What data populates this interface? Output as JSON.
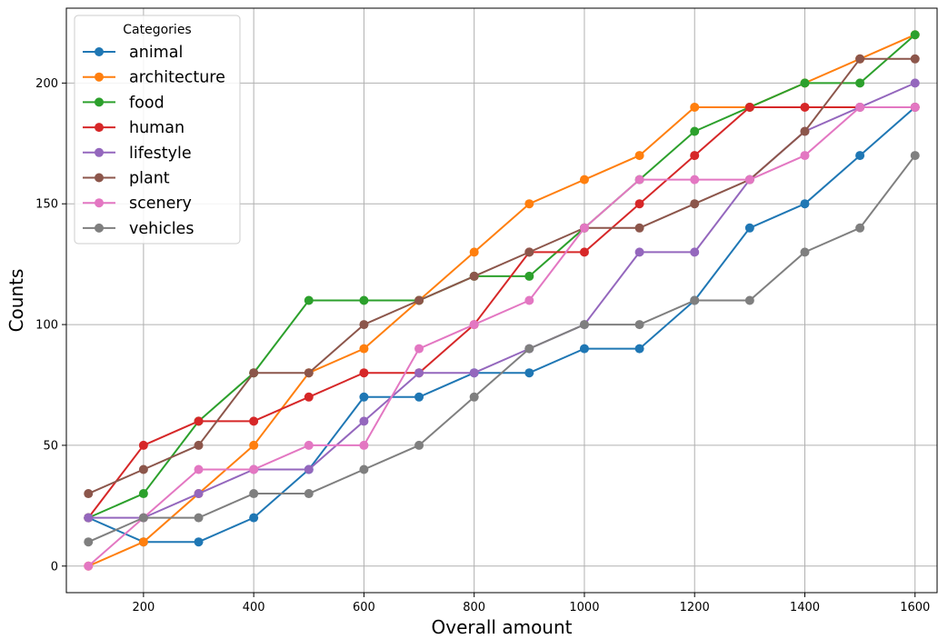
{
  "chart_data": {
    "type": "line",
    "xlabel": "Overall amount",
    "ylabel": "Counts",
    "x": [
      100,
      200,
      300,
      400,
      500,
      600,
      700,
      800,
      900,
      1000,
      1100,
      1200,
      1300,
      1400,
      1500,
      1600
    ],
    "xlim": [
      60,
      1640
    ],
    "ylim": [
      -11,
      231
    ],
    "xticks": [
      200,
      400,
      600,
      800,
      1000,
      1200,
      1400,
      1600
    ],
    "yticks": [
      0,
      50,
      100,
      150,
      200
    ],
    "grid": true,
    "legend": {
      "title": "Categories",
      "placement": "top-left"
    },
    "series": [
      {
        "name": "animal",
        "color": "#1f77b4",
        "values": [
          20,
          10,
          10,
          20,
          40,
          70,
          70,
          80,
          80,
          90,
          90,
          110,
          140,
          150,
          170,
          190
        ]
      },
      {
        "name": "architecture",
        "color": "#ff7f0e",
        "values": [
          0,
          10,
          30,
          50,
          80,
          90,
          110,
          130,
          150,
          160,
          170,
          190,
          190,
          200,
          210,
          220
        ]
      },
      {
        "name": "food",
        "color": "#2ca02c",
        "values": [
          20,
          30,
          60,
          80,
          110,
          110,
          110,
          120,
          120,
          140,
          160,
          180,
          190,
          200,
          200,
          220
        ]
      },
      {
        "name": "human",
        "color": "#d62728",
        "values": [
          20,
          50,
          60,
          60,
          70,
          80,
          80,
          100,
          130,
          130,
          150,
          170,
          190,
          190,
          190,
          190
        ]
      },
      {
        "name": "lifestyle",
        "color": "#9467bd",
        "values": [
          20,
          20,
          30,
          40,
          40,
          60,
          80,
          80,
          90,
          100,
          130,
          130,
          160,
          180,
          190,
          200
        ]
      },
      {
        "name": "plant",
        "color": "#8c564b",
        "values": [
          30,
          40,
          50,
          80,
          80,
          100,
          110,
          120,
          130,
          140,
          140,
          150,
          160,
          180,
          210,
          210
        ]
      },
      {
        "name": "scenery",
        "color": "#e377c2",
        "values": [
          0,
          20,
          40,
          40,
          50,
          50,
          90,
          100,
          110,
          140,
          160,
          160,
          160,
          170,
          190,
          190
        ]
      },
      {
        "name": "vehicles",
        "color": "#7f7f7f",
        "values": [
          10,
          20,
          20,
          30,
          30,
          40,
          50,
          70,
          90,
          100,
          100,
          110,
          110,
          130,
          140,
          170
        ]
      }
    ]
  }
}
